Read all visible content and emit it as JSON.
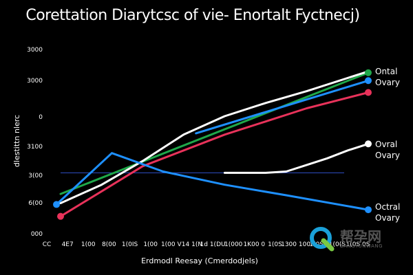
{
  "chart_data": {
    "type": "line",
    "title": "Corettation Diarytcsc of vie- Enortalt Fyctnecj)",
    "xlabel": "Erdmodl Reesay (Cmerdodjels)",
    "ylabel": "dlestittn nlerc",
    "y_tick_labels": [
      "000",
      "6(00",
      "3(00",
      "3100",
      "0",
      "3000",
      "3000"
    ],
    "x_tick_labels": [
      "CC",
      "4E7",
      "1(00",
      "8(00",
      "1(0IS",
      "1(00",
      "1(00 V",
      "14 1(N",
      "1d 1(DU",
      "1(000",
      "1K00 0",
      "1(0S",
      "1300 100",
      "1(0S",
      "1(0(S",
      "1(0S 0S"
    ],
    "xlim": [
      0,
      15
    ],
    "ylim": [
      0,
      6
    ],
    "grid": false,
    "series": [
      {
        "name": "",
        "color": "#1fa84a",
        "values": [
          [
            0,
            1.25
          ],
          [
            15,
            5.85
          ]
        ],
        "markers": "end"
      },
      {
        "name": "Ontal",
        "color": "#ffffff",
        "values": [
          [
            0,
            0.9
          ],
          [
            2,
            1.6
          ],
          [
            4,
            2.5
          ],
          [
            6,
            3.5
          ],
          [
            8,
            4.2
          ],
          [
            10,
            4.7
          ],
          [
            12,
            5.15
          ],
          [
            15,
            5.9
          ]
        ],
        "markers": "none"
      },
      {
        "name": "Ovary",
        "color": "#1e90ff",
        "values": [
          [
            6.6,
            3.55
          ],
          [
            15,
            5.55
          ]
        ],
        "markers": "end"
      },
      {
        "name": "",
        "color": "#e8325a",
        "values": [
          [
            0,
            0.4
          ],
          [
            2,
            1.35
          ],
          [
            4,
            2.3
          ],
          [
            6,
            2.9
          ],
          [
            8,
            3.5
          ],
          [
            10,
            4.0
          ],
          [
            12,
            4.5
          ],
          [
            15,
            5.1
          ]
        ],
        "markers": "both"
      },
      {
        "name": "Ovral Ovary",
        "color": "#ffffff",
        "values": [
          [
            8,
            2.05
          ],
          [
            9,
            2.05
          ],
          [
            10,
            2.05
          ],
          [
            11,
            2.1
          ],
          [
            12,
            2.35
          ],
          [
            13,
            2.6
          ],
          [
            14,
            2.9
          ],
          [
            15,
            3.15
          ]
        ],
        "markers": "end"
      },
      {
        "name": "Octral Ovary",
        "color": "#1e90ff",
        "values": [
          [
            -0.2,
            0.85
          ],
          [
            2.5,
            2.8
          ],
          [
            5,
            2.1
          ],
          [
            8,
            1.6
          ],
          [
            11,
            1.2
          ],
          [
            15,
            0.65
          ]
        ],
        "markers": "both"
      }
    ],
    "reference_line": {
      "y": 2.05,
      "color": "#3050c8"
    }
  },
  "watermark": {
    "main": "帮孕网",
    "sub": "BANGYUNWANG"
  }
}
